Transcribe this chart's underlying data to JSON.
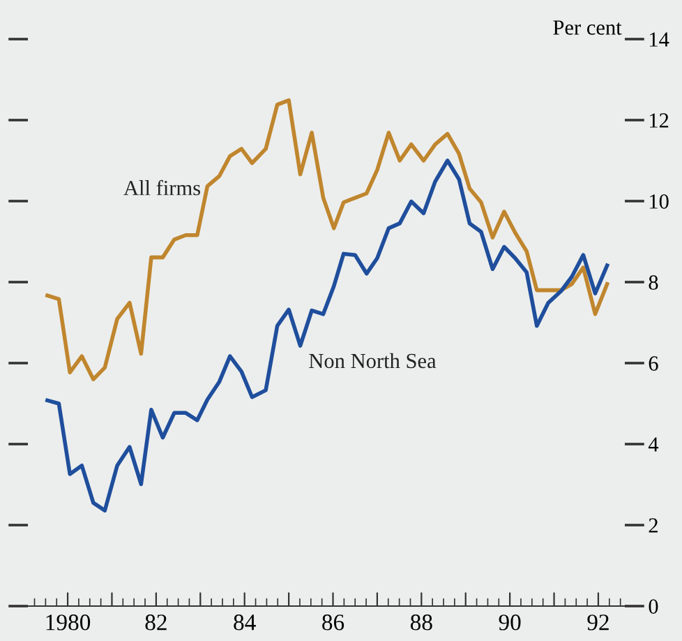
{
  "chart_data": {
    "type": "line",
    "ylabel": "Per cent",
    "xlim": [
      1979.1,
      1992.6
    ],
    "ylim": [
      0,
      14
    ],
    "xticks": [
      {
        "value": 1980,
        "label": "1980"
      },
      {
        "value": 1981,
        "label": null
      },
      {
        "value": 1982,
        "label": "82"
      },
      {
        "value": 1983,
        "label": null
      },
      {
        "value": 1984,
        "label": "84"
      },
      {
        "value": 1985,
        "label": null
      },
      {
        "value": 1986,
        "label": "86"
      },
      {
        "value": 1987,
        "label": null
      },
      {
        "value": 1988,
        "label": "88"
      },
      {
        "value": 1989,
        "label": null
      },
      {
        "value": 1990,
        "label": "90"
      },
      {
        "value": 1991,
        "label": null
      },
      {
        "value": 1992,
        "label": "92"
      }
    ],
    "yticks": [
      0,
      2,
      4,
      6,
      8,
      10,
      12,
      14
    ],
    "grid": false,
    "legend": false,
    "marker": "none",
    "line_style": "solid",
    "series": [
      {
        "name": "All firms",
        "color": "#c0862e",
        "x": [
          1979.54,
          1979.8,
          1980.05,
          1980.32,
          1980.58,
          1980.84,
          1981.12,
          1981.4,
          1981.66,
          1981.89,
          1982.15,
          1982.41,
          1982.67,
          1982.93,
          1983.16,
          1983.43,
          1983.67,
          1983.93,
          1984.17,
          1984.48,
          1984.74,
          1985.0,
          1985.26,
          1985.52,
          1985.78,
          1986.02,
          1986.24,
          1986.5,
          1986.76,
          1987.0,
          1987.26,
          1987.51,
          1987.77,
          1988.05,
          1988.31,
          1988.59,
          1988.85,
          1989.09,
          1989.35,
          1989.61,
          1989.87,
          1990.12,
          1990.38,
          1990.61,
          1990.87,
          1991.16,
          1991.4,
          1991.66,
          1991.93,
          1992.2
        ],
        "values": [
          7.67,
          7.58,
          5.77,
          6.17,
          5.6,
          5.89,
          7.09,
          7.49,
          6.23,
          8.61,
          8.61,
          9.05,
          9.16,
          9.16,
          10.37,
          10.62,
          11.11,
          11.29,
          10.94,
          11.29,
          12.38,
          12.49,
          10.66,
          11.69,
          10.08,
          9.33,
          9.97,
          10.08,
          10.19,
          10.77,
          11.69,
          11.0,
          11.4,
          11.0,
          11.4,
          11.66,
          11.17,
          10.31,
          9.97,
          9.1,
          9.74,
          9.22,
          8.76,
          7.8,
          7.8,
          7.8,
          7.95,
          8.36,
          7.21,
          7.95
        ]
      },
      {
        "name": "Non North Sea",
        "color": "#1f4e9c",
        "x": [
          1979.54,
          1979.8,
          1980.05,
          1980.32,
          1980.58,
          1980.84,
          1981.12,
          1981.4,
          1981.66,
          1981.89,
          1982.15,
          1982.41,
          1982.67,
          1982.93,
          1983.16,
          1983.43,
          1983.67,
          1983.93,
          1984.17,
          1984.48,
          1984.74,
          1985.0,
          1985.26,
          1985.52,
          1985.78,
          1986.02,
          1986.24,
          1986.5,
          1986.76,
          1987.0,
          1987.26,
          1987.51,
          1987.77,
          1988.05,
          1988.31,
          1988.59,
          1988.85,
          1989.09,
          1989.35,
          1989.61,
          1989.87,
          1990.12,
          1990.38,
          1990.61,
          1990.87,
          1991.16,
          1991.4,
          1991.66,
          1991.93,
          1992.2
        ],
        "values": [
          5.08,
          5.0,
          3.26,
          3.47,
          2.55,
          2.36,
          3.47,
          3.93,
          3.01,
          4.85,
          4.16,
          4.77,
          4.77,
          4.59,
          5.1,
          5.54,
          6.17,
          5.79,
          5.16,
          5.33,
          6.92,
          7.32,
          6.43,
          7.3,
          7.21,
          7.9,
          8.7,
          8.67,
          8.21,
          8.59,
          9.33,
          9.45,
          9.99,
          9.7,
          10.48,
          11.0,
          10.54,
          9.45,
          9.24,
          8.32,
          8.87,
          8.59,
          8.24,
          6.92,
          7.49,
          7.78,
          8.13,
          8.67,
          7.72,
          8.41
        ]
      }
    ]
  }
}
